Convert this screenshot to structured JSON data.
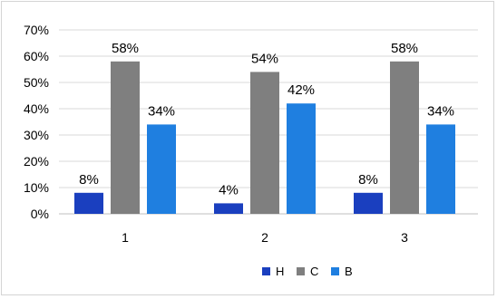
{
  "chart_data": {
    "type": "bar",
    "categories": [
      "1",
      "2",
      "3"
    ],
    "series": [
      {
        "name": "H",
        "values": [
          8,
          4,
          8
        ],
        "labels": [
          "8%",
          "4%",
          "8%"
        ],
        "color": "#1a3fbf"
      },
      {
        "name": "C",
        "values": [
          58,
          54,
          58
        ],
        "labels": [
          "58%",
          "54%",
          "58%"
        ],
        "color": "#7f7f7f"
      },
      {
        "name": "B",
        "values": [
          34,
          42,
          34
        ],
        "labels": [
          "34%",
          "42%",
          "34%"
        ],
        "color": "#1f7fe0"
      }
    ],
    "ylim": [
      0,
      70
    ],
    "yticks": [
      0,
      10,
      20,
      30,
      40,
      50,
      60,
      70
    ],
    "ytick_labels": [
      "0%",
      "10%",
      "20%",
      "30%",
      "40%",
      "50%",
      "60%",
      "70%"
    ],
    "grid": true,
    "legend_position": "bottom",
    "title": "",
    "xlabel": "",
    "ylabel": ""
  }
}
